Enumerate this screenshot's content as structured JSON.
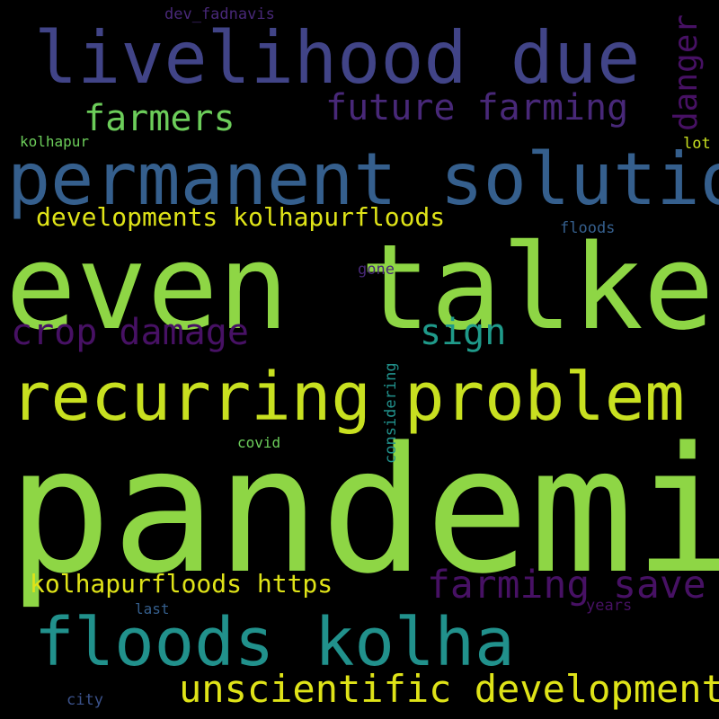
{
  "colors": {
    "background": "#000000",
    "light_green": "#8ed645",
    "mid_green": "#6ccd5a",
    "yellow_green": "#c8e020",
    "yellow": "#dfe318",
    "teal": "#21918c",
    "teal_dark": "#1f9a8a",
    "blue": "#355f8d",
    "indigo": "#414487",
    "purple": "#482878",
    "dark_purple": "#471164",
    "navy": "#3b528b"
  },
  "words": [
    {
      "id": "pandemic",
      "text": "pandemic"
    },
    {
      "id": "even-talked",
      "text": "even talked"
    },
    {
      "id": "permanent-solution",
      "text": "permanent solution"
    },
    {
      "id": "recurring",
      "text": "recurring"
    },
    {
      "id": "problem",
      "text": "problem"
    },
    {
      "id": "livelihood-due",
      "text": "livelihood due"
    },
    {
      "id": "floods-kolha",
      "text": "floods kolha"
    },
    {
      "id": "unscientific-developments",
      "text": "unscientific developments"
    },
    {
      "id": "farming-save",
      "text": "farming save"
    },
    {
      "id": "crop-damage",
      "text": "crop damage"
    },
    {
      "id": "future-farming",
      "text": "future farming"
    },
    {
      "id": "farmers",
      "text": "farmers"
    },
    {
      "id": "developments-kolhapurfloods",
      "text": "developments kolhapurfloods"
    },
    {
      "id": "kolhapurfloods-https",
      "text": "kolhapurfloods https"
    },
    {
      "id": "sign",
      "text": "sign"
    },
    {
      "id": "danger",
      "text": "danger"
    },
    {
      "id": "dev-fadnavis",
      "text": "dev_fadnavis"
    },
    {
      "id": "kolhapur",
      "text": "kolhapur"
    },
    {
      "id": "lot",
      "text": "lot"
    },
    {
      "id": "floods",
      "text": "floods"
    },
    {
      "id": "gone",
      "text": "gone"
    },
    {
      "id": "considering",
      "text": "considering"
    },
    {
      "id": "covid",
      "text": "covid"
    },
    {
      "id": "last",
      "text": "last"
    },
    {
      "id": "years",
      "text": "years"
    },
    {
      "id": "city",
      "text": "city"
    }
  ]
}
